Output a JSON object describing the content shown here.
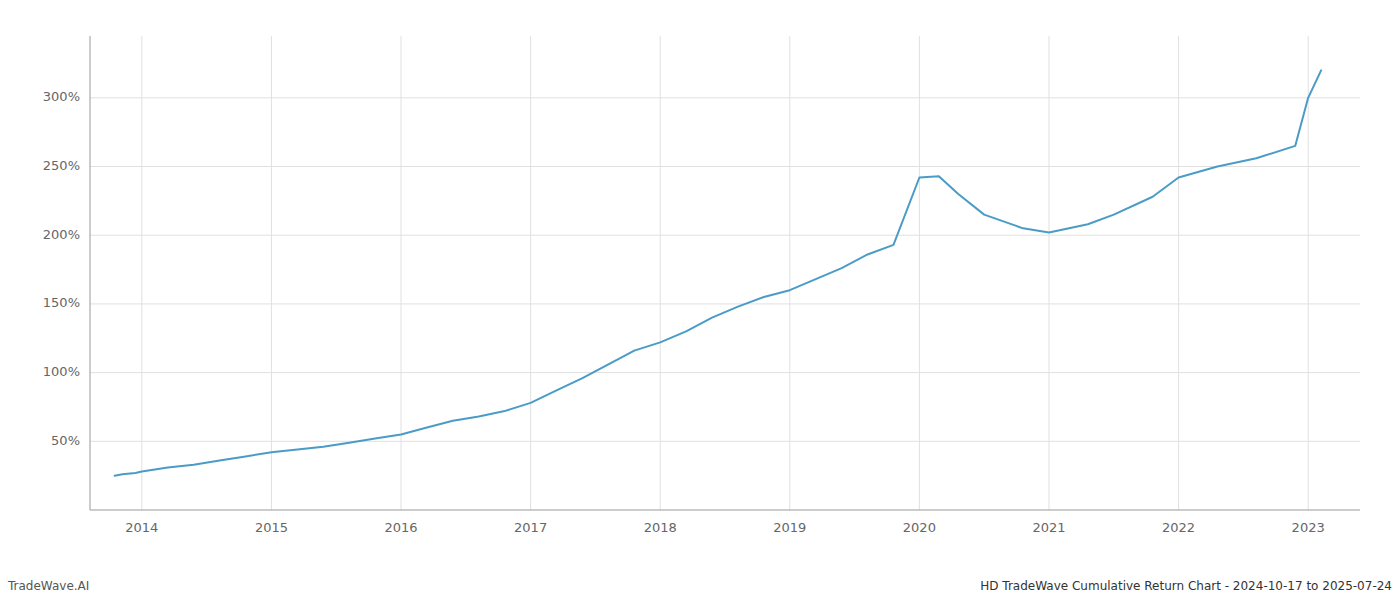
{
  "chart_data": {
    "type": "line",
    "title": "HD TradeWave Cumulative Return Chart - 2024-10-17 to 2025-07-24",
    "annotations": [
      "TradeWave.AI"
    ],
    "x": [
      2013.79,
      2013.85,
      2013.95,
      2014.0,
      2014.2,
      2014.4,
      2014.6,
      2014.8,
      2015.0,
      2015.2,
      2015.4,
      2015.6,
      2015.8,
      2016.0,
      2016.2,
      2016.4,
      2016.6,
      2016.8,
      2017.0,
      2017.2,
      2017.4,
      2017.6,
      2017.8,
      2018.0,
      2018.2,
      2018.4,
      2018.6,
      2018.8,
      2019.0,
      2019.2,
      2019.4,
      2019.6,
      2019.8,
      2020.0,
      2020.15,
      2020.3,
      2020.5,
      2020.8,
      2021.0,
      2021.3,
      2021.5,
      2021.8,
      2022.0,
      2022.3,
      2022.6,
      2022.9,
      2023.0,
      2023.1
    ],
    "values": [
      25,
      26,
      27,
      28,
      31,
      33,
      36,
      39,
      42,
      44,
      46,
      49,
      52,
      55,
      60,
      65,
      68,
      72,
      78,
      87,
      96,
      106,
      116,
      122,
      130,
      140,
      148,
      155,
      160,
      168,
      176,
      186,
      193,
      242,
      243,
      230,
      215,
      205,
      202,
      208,
      215,
      228,
      242,
      250,
      256,
      265,
      300,
      320
    ],
    "color": "#4a9cc7",
    "xlim": [
      2013.6,
      2023.4
    ],
    "xticks": [
      2014,
      2015,
      2016,
      2017,
      2018,
      2019,
      2020,
      2021,
      2022,
      2023
    ],
    "ylim": [
      0,
      345
    ],
    "yticks": [
      {
        "value": 50,
        "label": "50%"
      },
      {
        "value": 100,
        "label": "100%"
      },
      {
        "value": 150,
        "label": "150%"
      },
      {
        "value": 200,
        "label": "200%"
      },
      {
        "value": 250,
        "label": "250%"
      },
      {
        "value": 300,
        "label": "300%"
      }
    ],
    "grid": true
  }
}
